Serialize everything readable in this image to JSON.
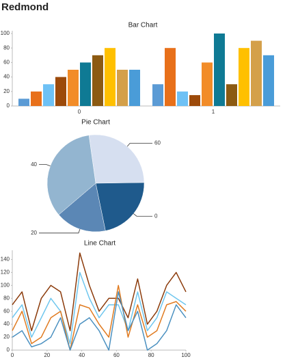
{
  "title": "Redmond",
  "chart_data": [
    {
      "type": "bar",
      "title": "Bar Chart",
      "categories": [
        "0",
        "1"
      ],
      "series": [
        {
          "color": "#5b9bd5",
          "values": [
            10,
            30
          ]
        },
        {
          "color": "#e8701a",
          "values": [
            20,
            80
          ]
        },
        {
          "color": "#6ec1f5",
          "values": [
            30,
            20
          ]
        },
        {
          "color": "#9c4a0a",
          "values": [
            40,
            15
          ]
        },
        {
          "color": "#f28c28",
          "values": [
            50,
            60
          ]
        },
        {
          "color": "#0f7a94",
          "values": [
            60,
            100
          ]
        },
        {
          "color": "#8c5a12",
          "values": [
            70,
            30
          ]
        },
        {
          "color": "#ffc000",
          "values": [
            80,
            80
          ]
        },
        {
          "color": "#d4a04a",
          "values": [
            50,
            90
          ]
        },
        {
          "color": "#4a9cd8",
          "values": [
            50,
            70
          ]
        }
      ],
      "ylim": [
        0,
        100
      ],
      "yticks": [
        0,
        20,
        40,
        60,
        80,
        100
      ]
    },
    {
      "type": "pie",
      "title": "Pie Chart",
      "categories": [
        "60",
        "0",
        "20",
        "40"
      ],
      "values": [
        27,
        22,
        17,
        34
      ],
      "colors": [
        "#d6dff0",
        "#1f5a8c",
        "#5b87b5",
        "#93b5d0"
      ]
    },
    {
      "type": "line",
      "title": "Line Chart",
      "x": [
        0,
        5.6,
        11.1,
        16.7,
        22.2,
        27.8,
        33.3,
        38.9,
        44.4,
        50,
        55.6,
        61.1,
        66.7,
        72.2,
        77.8,
        83.3,
        88.9,
        94.4,
        100
      ],
      "series": [
        {
          "color": "#8b3a0a",
          "values": [
            70,
            90,
            30,
            80,
            100,
            90,
            30,
            150,
            100,
            60,
            80,
            80,
            50,
            110,
            40,
            60,
            100,
            120,
            90
          ]
        },
        {
          "color": "#6ec6ee",
          "values": [
            50,
            70,
            20,
            50,
            80,
            60,
            10,
            120,
            80,
            50,
            70,
            70,
            30,
            90,
            30,
            50,
            90,
            80,
            70
          ]
        },
        {
          "color": "#e07a1f",
          "values": [
            30,
            60,
            10,
            20,
            50,
            60,
            0,
            70,
            65,
            40,
            20,
            100,
            20,
            70,
            20,
            30,
            70,
            75,
            60
          ]
        },
        {
          "color": "#4a90c0",
          "values": [
            20,
            30,
            5,
            10,
            20,
            50,
            0,
            40,
            50,
            30,
            0,
            90,
            30,
            60,
            0,
            10,
            30,
            70,
            50
          ]
        }
      ],
      "xlim": [
        0,
        100
      ],
      "xticks": [
        0,
        20,
        40,
        60,
        80,
        100
      ],
      "ylim": [
        0,
        150
      ],
      "yticks": [
        0,
        20,
        40,
        60,
        80,
        100,
        120,
        140
      ]
    }
  ]
}
